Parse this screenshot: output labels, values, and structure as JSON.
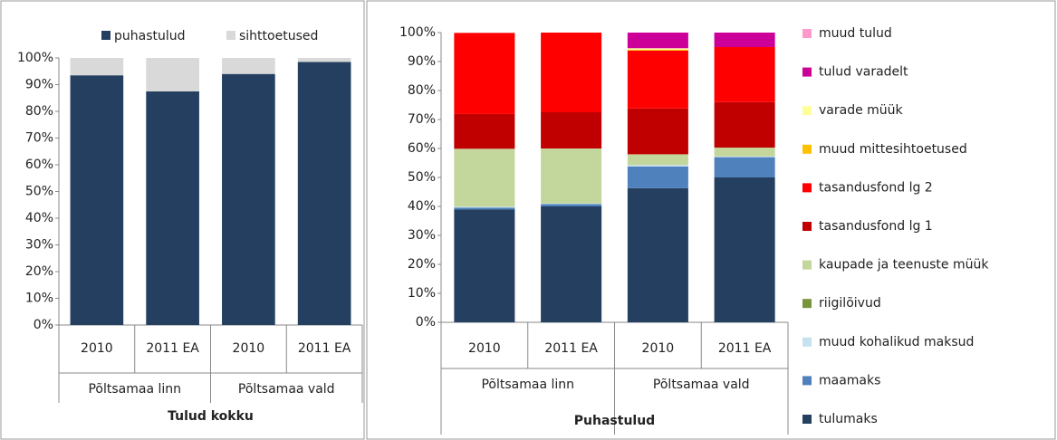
{
  "chart_data": [
    {
      "type": "bar",
      "stacked": true,
      "legend": "top",
      "x_label": "Tulud kokku",
      "categories": [
        "2010",
        "2011 EA",
        "2010",
        "2011 EA"
      ],
      "groups": [
        "Põltsamaa linn",
        "Põltsamaa vald"
      ],
      "ylim": [
        0,
        100
      ],
      "yticks": [
        {
          "value": 0,
          "label": "0%"
        },
        {
          "value": 10,
          "label": "10%"
        },
        {
          "value": 20,
          "label": "20%"
        },
        {
          "value": 30,
          "label": "30%"
        },
        {
          "value": 40,
          "label": "40%"
        },
        {
          "value": 50,
          "label": "50%"
        },
        {
          "value": 60,
          "label": "60%"
        },
        {
          "value": 70,
          "label": "70%"
        },
        {
          "value": 80,
          "label": "80%"
        },
        {
          "value": 90,
          "label": "90%"
        },
        {
          "value": 100,
          "label": "100%"
        }
      ],
      "series": [
        {
          "name": "puhastulud",
          "color": "#243f60",
          "values": [
            93.5,
            87.5,
            94,
            98.5
          ]
        },
        {
          "name": "sihttoetused",
          "color": "#d9d9d9",
          "values": [
            6.5,
            12.5,
            6,
            1.5
          ]
        }
      ]
    },
    {
      "type": "bar",
      "stacked": true,
      "legend": "right",
      "x_label": "Puhastulud",
      "categories": [
        "2010",
        "2011 EA",
        "2010",
        "2011 EA"
      ],
      "groups": [
        "Põltsamaa linn",
        "Põltsamaa vald"
      ],
      "ylim": [
        0,
        100
      ],
      "yticks": [
        {
          "value": 0,
          "label": "0%"
        },
        {
          "value": 10,
          "label": "10%"
        },
        {
          "value": 20,
          "label": "20%"
        },
        {
          "value": 30,
          "label": "30%"
        },
        {
          "value": 40,
          "label": "40%"
        },
        {
          "value": 50,
          "label": "50%"
        },
        {
          "value": 60,
          "label": "60%"
        },
        {
          "value": 70,
          "label": "70%"
        },
        {
          "value": 80,
          "label": "80%"
        },
        {
          "value": 90,
          "label": "90%"
        },
        {
          "value": 100,
          "label": "100%"
        }
      ],
      "series": [
        {
          "name": "tulumaks",
          "color": "#243f60",
          "values": [
            39,
            40,
            46.3,
            50
          ]
        },
        {
          "name": "maamaks",
          "color": "#4f81bd",
          "values": [
            0.6,
            0.8,
            7.5,
            7
          ]
        },
        {
          "name": "muud kohalikud maksud",
          "color": "#c6e2f0",
          "values": [
            0.3,
            0.2,
            0.5,
            0.3
          ]
        },
        {
          "name": "riigilõivud",
          "color": "#77933c",
          "values": [
            0,
            0,
            0,
            0
          ]
        },
        {
          "name": "kaupade ja teenuste müük",
          "color": "#c3d69b",
          "values": [
            20,
            19,
            3.7,
            3
          ]
        },
        {
          "name": "tasandusfond lg 1",
          "color": "#c00000",
          "values": [
            12,
            12.5,
            15.8,
            15.7
          ]
        },
        {
          "name": "tasandusfond lg 2",
          "color": "#ff0000",
          "values": [
            28,
            27.5,
            20,
            19
          ]
        },
        {
          "name": "muud mittesihtoetused",
          "color": "#ffc000",
          "values": [
            0,
            0,
            0.3,
            0
          ]
        },
        {
          "name": "varade müük",
          "color": "#ffff99",
          "values": [
            0,
            0,
            0.5,
            0
          ]
        },
        {
          "name": "tulud varadelt",
          "color": "#cc0099",
          "values": [
            0,
            0,
            5.4,
            5
          ]
        },
        {
          "name": "muud tulud",
          "color": "#ff99cc",
          "values": [
            0,
            0,
            0,
            0
          ]
        }
      ]
    }
  ]
}
